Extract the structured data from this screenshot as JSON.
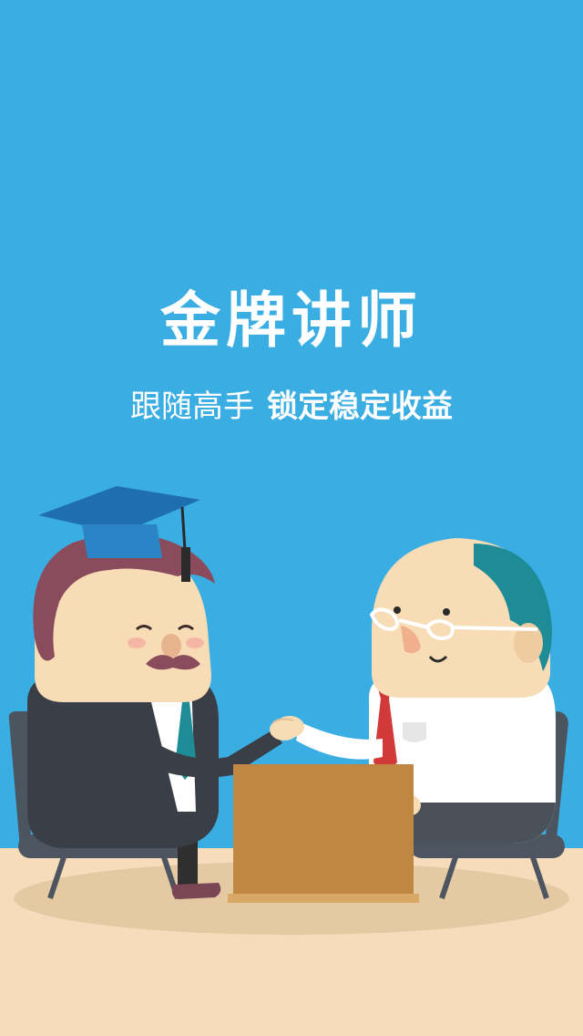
{
  "splash": {
    "title": "金牌讲师",
    "subtitle_part1": "跟随高手",
    "subtitle_part2": "锁定稳定收益"
  },
  "colors": {
    "sky": "#3aaee2",
    "floor": "#f6dcbb",
    "desk": "#c08743",
    "skin": "#f7dcb6"
  },
  "icons": {
    "illustration": "handshake-scene-illustration"
  }
}
